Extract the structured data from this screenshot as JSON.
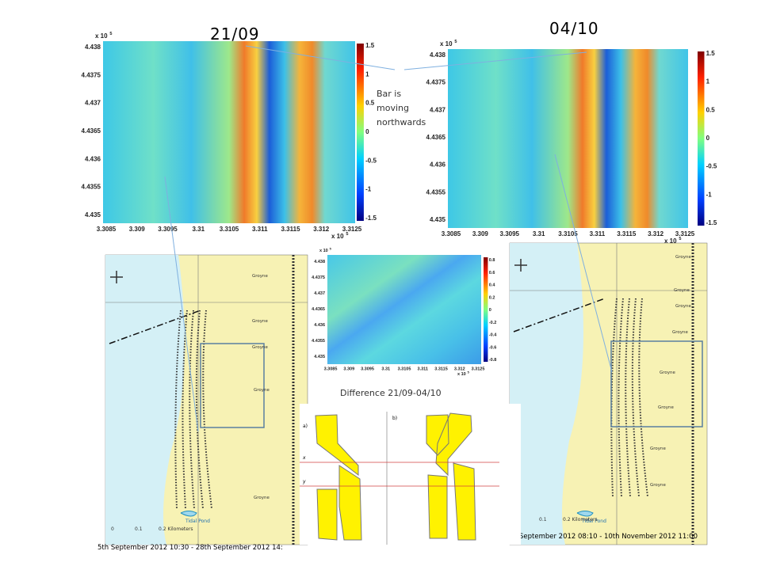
{
  "slide": {
    "date_left": "21/09",
    "date_right": "04/10",
    "annotation": [
      "Bar is",
      "moving",
      "northwards"
    ],
    "difference_caption": "Difference 21/09-04/10"
  },
  "heatmaps": [
    {
      "multiplier": "x 10",
      "exponent": "5",
      "yticks": [
        "4.438",
        "4.4375",
        "4.437",
        "4.4365",
        "4.436",
        "4.4355",
        "4.435"
      ],
      "xticks": [
        "3.3085",
        "3.309",
        "3.3095",
        "3.31",
        "3.3105",
        "3.311",
        "3.3115",
        "3.312",
        "3.3125"
      ],
      "colorbar": [
        "1.5",
        "1",
        "0.5",
        "0",
        "-0.5",
        "-1",
        "-1.5"
      ]
    },
    {
      "multiplier": "x 10",
      "exponent": "5",
      "yticks": [
        "4.438",
        "4.4375",
        "4.437",
        "4.4365",
        "4.436",
        "4.4355",
        "4.435"
      ],
      "xticks": [
        "3.3085",
        "3.309",
        "3.3095",
        "3.31",
        "3.3105",
        "3.311",
        "3.3115",
        "3.312",
        "3.3125"
      ],
      "colorbar": [
        "1.5",
        "1",
        "0.5",
        "0",
        "-0.5",
        "-1",
        "-1.5"
      ]
    },
    {
      "multiplier": "x 10",
      "exponent": "5",
      "yticks": [
        "4.438",
        "4.4375",
        "4.437",
        "4.4365",
        "4.436",
        "4.4355",
        "4.435"
      ],
      "xticks": [
        "3.3085",
        "3.309",
        "3.3095",
        "3.31",
        "3.3105",
        "3.311",
        "3.3115",
        "3.312",
        "3.3125"
      ],
      "colorbar": [
        "0.8",
        "0.6",
        "0.4",
        "0.2",
        "0",
        "-0.2",
        "-0.4",
        "-0.6",
        "-0.8"
      ]
    }
  ],
  "maps": [
    {
      "caption": "5th September 2012 10:30 - 28th September 2012 14:",
      "labels": [
        "Groyne",
        "Groyne",
        "Groyne",
        "Groyne",
        "Groyne"
      ],
      "pond": "Tidal Pond",
      "scale": [
        "0",
        "0.1",
        "0.2 Kilometers"
      ]
    },
    {
      "caption": "September 2012 08:10 - 10th November 2012 11:00",
      "labels": [
        "Groyne",
        "Groyne",
        "Groyne",
        "Groyne",
        "Groyne",
        "Groyne",
        "Groyne",
        "Groyne"
      ],
      "pond": "Tidal Pond",
      "scale": [
        "0.1",
        "0.2 Kilometers"
      ]
    }
  ],
  "schematic": {
    "panels": [
      "a)",
      "b)"
    ],
    "lines": [
      "x",
      "y"
    ]
  }
}
